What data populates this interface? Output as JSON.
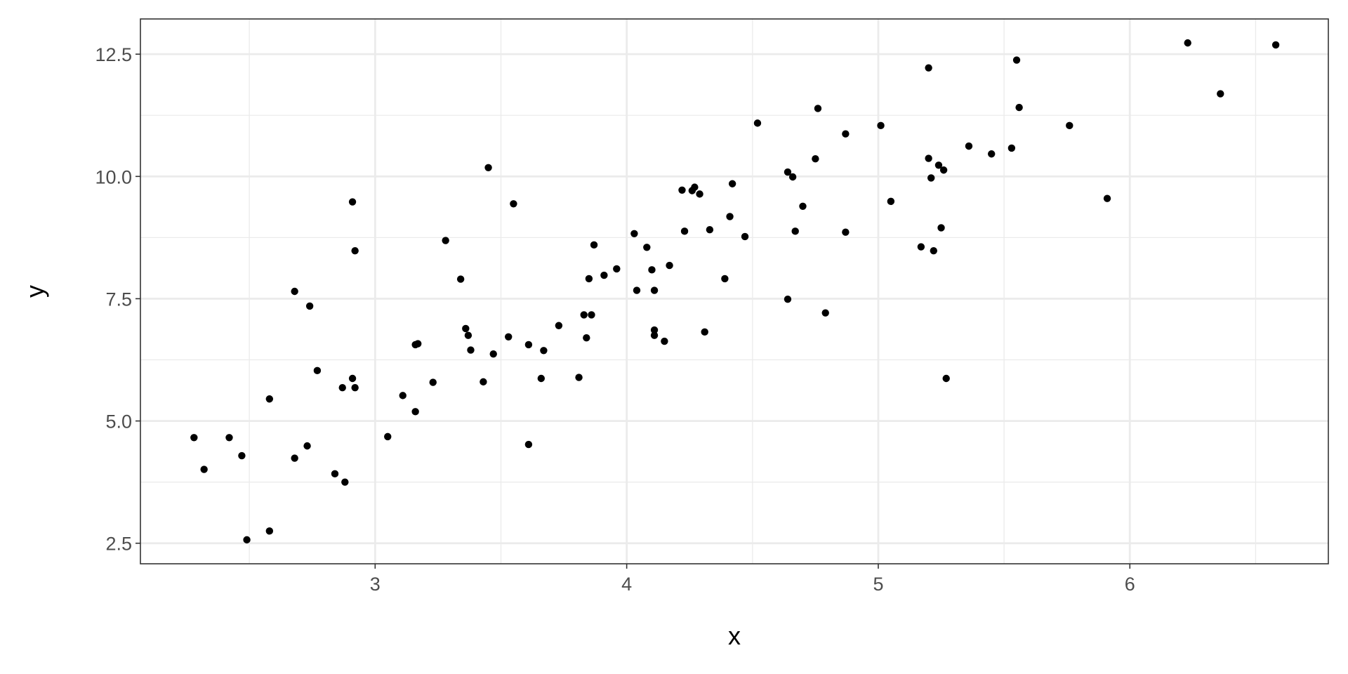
{
  "chart_data": {
    "type": "scatter",
    "title": "",
    "xlabel": "x",
    "ylabel": "y",
    "xlim": [
      2.067,
      6.789
    ],
    "ylim": [
      2.08,
      13.22
    ],
    "grid": true,
    "x_ticks": [
      3,
      4,
      5,
      6
    ],
    "x_tick_labels": [
      "3",
      "4",
      "5",
      "6"
    ],
    "y_ticks": [
      2.5,
      5.0,
      7.5,
      10.0,
      12.5
    ],
    "y_tick_labels": [
      "2.5",
      "5.0",
      "7.5",
      "10.0",
      "12.5"
    ],
    "point_color": "#000000",
    "points": [
      [
        2.28,
        4.66
      ],
      [
        2.32,
        4.01
      ],
      [
        2.42,
        4.66
      ],
      [
        2.47,
        4.29
      ],
      [
        2.49,
        2.57
      ],
      [
        2.58,
        2.75
      ],
      [
        2.58,
        5.45
      ],
      [
        2.68,
        7.65
      ],
      [
        2.68,
        4.24
      ],
      [
        2.73,
        4.49
      ],
      [
        2.74,
        7.35
      ],
      [
        2.77,
        6.03
      ],
      [
        2.84,
        3.92
      ],
      [
        2.87,
        5.68
      ],
      [
        2.88,
        3.75
      ],
      [
        2.91,
        9.48
      ],
      [
        2.91,
        5.87
      ],
      [
        2.92,
        5.68
      ],
      [
        2.92,
        8.48
      ],
      [
        3.05,
        4.68
      ],
      [
        3.11,
        5.52
      ],
      [
        3.16,
        5.19
      ],
      [
        3.16,
        6.56
      ],
      [
        3.17,
        6.58
      ],
      [
        3.23,
        5.79
      ],
      [
        3.28,
        8.69
      ],
      [
        3.34,
        7.9
      ],
      [
        3.36,
        6.89
      ],
      [
        3.37,
        6.75
      ],
      [
        3.38,
        6.45
      ],
      [
        3.43,
        5.8
      ],
      [
        3.45,
        10.18
      ],
      [
        3.47,
        6.37
      ],
      [
        3.53,
        6.72
      ],
      [
        3.55,
        9.44
      ],
      [
        3.61,
        6.56
      ],
      [
        3.61,
        4.52
      ],
      [
        3.66,
        5.87
      ],
      [
        3.67,
        6.44
      ],
      [
        3.73,
        6.95
      ],
      [
        3.81,
        5.89
      ],
      [
        3.83,
        7.17
      ],
      [
        3.84,
        6.7
      ],
      [
        3.85,
        7.91
      ],
      [
        3.86,
        7.17
      ],
      [
        3.87,
        8.6
      ],
      [
        3.91,
        7.98
      ],
      [
        3.96,
        8.11
      ],
      [
        4.03,
        8.83
      ],
      [
        4.04,
        7.67
      ],
      [
        4.08,
        8.55
      ],
      [
        4.1,
        8.09
      ],
      [
        4.11,
        7.67
      ],
      [
        4.11,
        6.86
      ],
      [
        4.11,
        6.75
      ],
      [
        4.15,
        6.63
      ],
      [
        4.17,
        8.18
      ],
      [
        4.22,
        9.72
      ],
      [
        4.23,
        8.88
      ],
      [
        4.26,
        9.71
      ],
      [
        4.27,
        9.78
      ],
      [
        4.29,
        9.64
      ],
      [
        4.31,
        6.82
      ],
      [
        4.33,
        8.91
      ],
      [
        4.39,
        7.91
      ],
      [
        4.41,
        9.18
      ],
      [
        4.42,
        9.85
      ],
      [
        4.47,
        8.77
      ],
      [
        4.52,
        11.09
      ],
      [
        4.64,
        10.09
      ],
      [
        4.64,
        7.49
      ],
      [
        4.66,
        9.99
      ],
      [
        4.67,
        8.88
      ],
      [
        4.7,
        9.39
      ],
      [
        4.75,
        10.36
      ],
      [
        4.76,
        11.39
      ],
      [
        4.79,
        7.21
      ],
      [
        4.87,
        10.87
      ],
      [
        4.87,
        8.86
      ],
      [
        5.01,
        11.04
      ],
      [
        5.05,
        9.49
      ],
      [
        5.17,
        8.56
      ],
      [
        5.2,
        10.37
      ],
      [
        5.2,
        12.22
      ],
      [
        5.21,
        9.97
      ],
      [
        5.22,
        8.48
      ],
      [
        5.24,
        10.23
      ],
      [
        5.25,
        8.95
      ],
      [
        5.26,
        10.13
      ],
      [
        5.27,
        5.87
      ],
      [
        5.36,
        10.62
      ],
      [
        5.45,
        10.46
      ],
      [
        5.53,
        10.58
      ],
      [
        5.55,
        12.38
      ],
      [
        5.56,
        11.41
      ],
      [
        5.76,
        11.04
      ],
      [
        5.91,
        9.55
      ],
      [
        6.23,
        12.73
      ],
      [
        6.36,
        11.69
      ],
      [
        6.58,
        12.69
      ]
    ]
  }
}
